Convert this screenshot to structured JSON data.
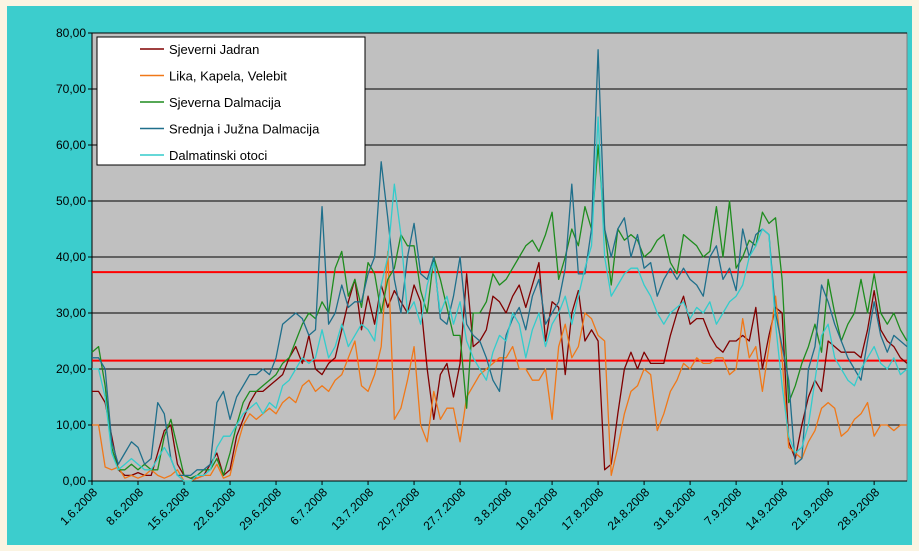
{
  "chart_data": {
    "type": "line",
    "categories": [
      "1.6.2008",
      null,
      null,
      null,
      null,
      null,
      null,
      "8.6.2008",
      null,
      null,
      null,
      null,
      null,
      null,
      "15.6.2008",
      null,
      null,
      null,
      null,
      null,
      null,
      "22.6.2008",
      null,
      null,
      null,
      null,
      null,
      null,
      "29.6.2008",
      null,
      null,
      null,
      null,
      null,
      null,
      "6.7.2008",
      null,
      null,
      null,
      null,
      null,
      null,
      "13.7.2008",
      null,
      null,
      null,
      null,
      null,
      null,
      "20.7.2008",
      null,
      null,
      null,
      null,
      null,
      null,
      "27.7.2008",
      null,
      null,
      null,
      null,
      null,
      null,
      "3.8.2008",
      null,
      null,
      null,
      null,
      null,
      null,
      "10.8.2008",
      null,
      null,
      null,
      null,
      null,
      null,
      "17.8.2008",
      null,
      null,
      null,
      null,
      null,
      null,
      "24.8.2008",
      null,
      null,
      null,
      null,
      null,
      null,
      "31.8.2008",
      null,
      null,
      null,
      null,
      null,
      null,
      "7.9.2008",
      null,
      null,
      null,
      null,
      null,
      null,
      "14.9.2008",
      null,
      null,
      null,
      null,
      null,
      null,
      "21.9.2008",
      null,
      null,
      null,
      null,
      null,
      null,
      "28.9.2008",
      null,
      null,
      null,
      null,
      null
    ],
    "series": [
      {
        "name": "Sjeverni Jadran",
        "color": "#800000",
        "values": [
          16,
          16,
          14,
          8,
          2,
          1,
          1,
          1.5,
          1,
          1,
          5,
          9,
          10,
          3,
          1,
          0.5,
          0.5,
          1,
          3,
          5,
          1,
          2,
          8,
          11,
          14,
          16,
          16,
          17,
          18,
          19,
          22,
          24,
          21,
          26,
          20,
          19,
          21,
          22,
          27,
          32,
          36,
          27,
          33,
          28,
          35,
          31,
          34,
          32,
          30,
          35,
          32,
          20,
          11,
          19,
          21,
          15,
          21,
          37,
          24,
          25,
          27,
          33,
          32,
          30,
          33,
          35,
          31,
          35,
          39,
          25,
          32,
          31,
          19,
          30,
          34,
          25,
          27,
          25,
          2,
          3,
          12,
          20,
          23,
          20,
          23,
          21,
          21,
          21,
          26,
          30,
          33,
          28,
          29,
          29,
          26,
          24,
          23,
          25,
          25,
          26,
          25,
          31,
          20,
          26,
          31,
          30,
          7,
          4,
          10,
          15,
          18,
          16,
          25,
          24,
          23,
          23,
          23,
          22,
          27,
          34,
          27,
          25,
          24,
          22,
          21
        ]
      },
      {
        "name": "Lika, Kapela, Velebit",
        "color": "#f07818",
        "values": [
          10,
          10,
          2.5,
          2,
          2.5,
          0.5,
          1,
          0.5,
          1,
          2,
          1,
          0.5,
          1,
          2,
          0,
          0,
          0.5,
          1,
          1,
          3,
          0.5,
          1,
          6,
          10,
          12,
          11,
          12,
          13,
          12,
          14,
          15,
          14,
          17,
          18,
          16,
          17,
          16,
          18,
          19,
          22,
          25,
          17,
          16,
          19,
          24,
          41,
          11,
          13,
          18,
          24,
          10,
          7,
          16,
          11,
          13,
          13,
          7,
          15,
          17,
          19,
          20,
          21,
          22,
          22,
          24,
          20,
          20,
          18,
          18,
          20,
          11,
          24,
          28,
          22,
          24,
          30,
          29,
          26,
          25,
          1,
          6,
          12,
          16,
          17,
          20,
          19,
          9,
          12,
          16,
          18,
          21,
          20,
          22,
          21,
          21,
          22,
          22,
          19,
          20,
          29,
          22,
          24,
          16,
          24,
          33,
          22,
          6,
          5,
          4,
          7,
          9,
          13,
          14,
          13,
          8,
          9,
          11,
          12,
          14,
          8,
          10,
          10,
          9,
          10,
          10
        ]
      },
      {
        "name": "Sjeverna Dalmacija",
        "color": "#1e8c1e",
        "values": [
          23,
          24,
          17,
          6,
          2,
          2,
          3,
          2,
          3,
          2,
          2,
          8,
          11,
          6,
          1,
          0.5,
          1,
          2,
          2,
          4,
          1,
          5,
          10,
          14,
          16,
          16,
          17,
          18,
          19,
          21,
          22,
          25,
          28,
          30,
          29,
          32,
          30,
          38,
          41,
          33,
          36,
          31,
          39,
          37,
          30,
          36,
          38,
          44,
          42,
          42,
          34,
          30,
          40,
          36,
          31,
          26,
          26,
          13,
          30,
          30,
          32,
          37,
          35,
          36,
          38,
          40,
          42,
          43,
          41,
          44,
          48,
          36,
          40,
          45,
          42,
          49,
          45,
          60,
          45,
          35,
          45,
          43,
          44,
          43,
          40,
          41,
          43,
          44,
          39,
          37,
          44,
          43,
          42,
          40,
          41,
          49,
          40,
          50,
          38,
          40,
          43,
          42,
          48,
          46,
          47,
          36,
          14,
          17,
          21,
          24,
          28,
          23,
          36,
          30,
          25,
          28,
          30,
          36,
          30,
          37,
          30,
          28,
          30,
          27,
          25
        ]
      },
      {
        "name": "Srednja i Južna Dalmacija",
        "color": "#1f6f8b",
        "values": [
          22,
          22,
          20,
          7,
          3,
          5,
          7,
          6,
          3,
          4,
          14,
          12,
          4,
          1,
          1,
          1,
          2,
          2,
          3,
          14,
          16,
          11,
          15,
          17,
          19,
          19,
          20,
          19,
          22,
          28,
          29,
          30,
          29,
          26,
          27,
          49,
          28,
          30,
          35,
          31,
          32,
          32,
          37,
          40,
          57,
          47,
          36,
          30,
          40,
          46,
          37,
          36,
          40,
          29,
          28,
          33,
          40,
          28,
          26,
          25,
          22,
          18,
          16,
          26,
          29,
          31,
          27,
          33,
          36,
          28,
          30,
          32,
          38,
          53,
          37,
          37,
          45,
          77,
          45,
          40,
          45,
          47,
          40,
          44,
          38,
          39,
          33,
          36,
          38,
          36,
          38,
          36,
          35,
          33,
          40,
          42,
          36,
          38,
          34,
          45,
          40,
          44,
          45,
          44,
          30,
          24,
          18,
          3,
          4,
          20,
          24,
          35,
          32,
          28,
          25,
          22,
          20,
          18,
          25,
          32,
          26,
          23,
          26,
          25,
          24
        ]
      },
      {
        "name": "Dalmatinski otoci",
        "color": "#33cccc",
        "values": [
          20,
          20,
          15,
          5,
          2,
          3,
          4,
          3,
          2,
          2,
          4,
          6,
          4,
          1,
          0,
          0,
          1,
          1,
          2,
          6,
          8,
          8,
          10,
          12,
          13,
          14,
          12,
          14,
          13,
          17,
          18,
          20,
          22,
          21,
          22,
          27,
          22,
          24,
          28,
          24,
          26,
          28,
          27,
          25,
          35,
          40,
          53,
          44,
          30,
          32,
          28,
          35,
          39,
          30,
          33,
          28,
          32,
          25,
          22,
          20,
          18,
          23,
          26,
          25,
          30,
          28,
          22,
          27,
          30,
          24,
          28,
          30,
          33,
          28,
          33,
          38,
          42,
          65,
          40,
          33,
          35,
          37,
          38,
          38,
          35,
          33,
          30,
          28,
          30,
          31,
          32,
          29,
          31,
          30,
          32,
          28,
          30,
          32,
          33,
          35,
          40,
          42,
          45,
          44,
          28,
          17,
          8,
          5,
          6,
          10,
          18,
          26,
          28,
          22,
          20,
          18,
          17,
          20,
          22,
          24,
          21,
          20,
          22,
          19,
          20
        ]
      }
    ],
    "ylim": [
      0,
      80
    ],
    "yticks": [
      {
        "value": 0,
        "label": "0,00"
      },
      {
        "value": 10,
        "label": "10,00"
      },
      {
        "value": 20,
        "label": "20,00"
      },
      {
        "value": 30,
        "label": "30,00"
      },
      {
        "value": 40,
        "label": "40,00"
      },
      {
        "value": 50,
        "label": "50,00"
      },
      {
        "value": 60,
        "label": "60,00"
      },
      {
        "value": 70,
        "label": "70,00"
      },
      {
        "value": 80,
        "label": "80,00"
      }
    ],
    "grid": true,
    "reference_lines": [
      {
        "value": 37.3,
        "color": "#ff0000"
      },
      {
        "value": 21.5,
        "color": "#ff0000"
      }
    ],
    "legend": "top-left"
  }
}
